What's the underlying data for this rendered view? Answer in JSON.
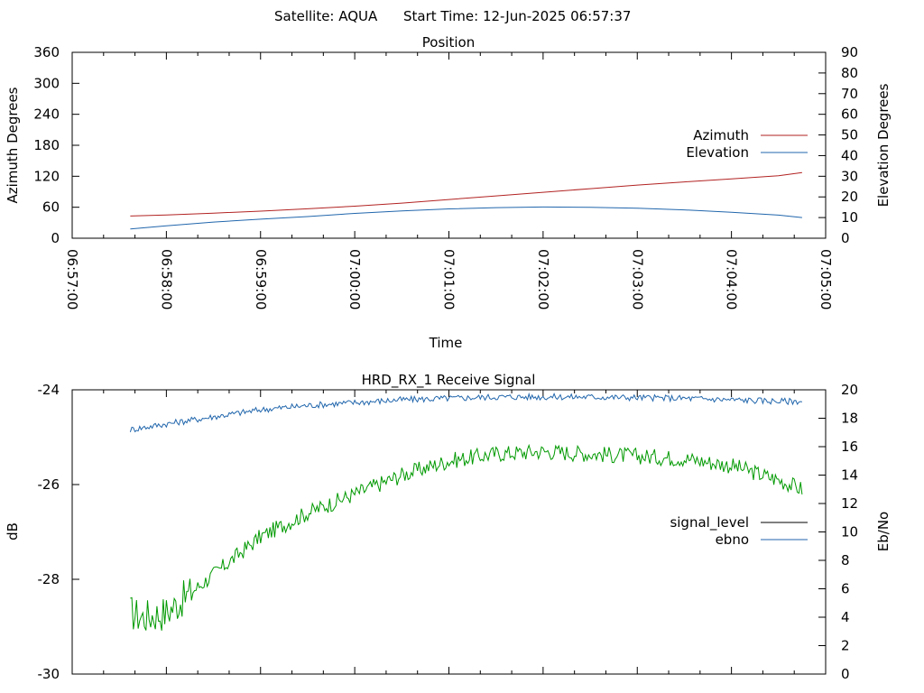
{
  "header": {
    "satellite": "Satellite: AQUA",
    "start_time": "Start Time: 12-Jun-2025 06:57:37"
  },
  "chart_data": [
    {
      "type": "line",
      "title": "Position",
      "xlabel": "Time",
      "ylabel": "Azimuth Degrees",
      "y2label": "Elevation Degrees",
      "xlim": [
        "06:57:00",
        "07:05:00"
      ],
      "ylim": [
        0,
        360
      ],
      "y2lim": [
        0,
        90
      ],
      "x_tick_labels": [
        "06:57:00",
        "06:58:00",
        "06:59:00",
        "07:00:00",
        "07:01:00",
        "07:02:00",
        "07:03:00",
        "07:04:00",
        "07:05:00"
      ],
      "y_tick_labels": [
        "0",
        "60",
        "120",
        "180",
        "240",
        "300",
        "360"
      ],
      "y2_tick_labels": [
        "0",
        "10",
        "20",
        "30",
        "40",
        "50",
        "60",
        "70",
        "80",
        "90"
      ],
      "legend_position": "right",
      "grid": false,
      "series": [
        {
          "name": "Azimuth",
          "axis": "y",
          "color": "#b22222",
          "points": [
            [
              "06:57:37",
              43
            ],
            [
              "06:58:00",
              45
            ],
            [
              "06:58:30",
              48.5
            ],
            [
              "06:59:00",
              52.5
            ],
            [
              "06:59:30",
              57
            ],
            [
              "07:00:00",
              62
            ],
            [
              "07:00:30",
              68
            ],
            [
              "07:01:00",
              75
            ],
            [
              "07:01:30",
              82
            ],
            [
              "07:02:00",
              89
            ],
            [
              "07:02:30",
              96
            ],
            [
              "07:03:00",
              103
            ],
            [
              "07:03:30",
              109
            ],
            [
              "07:04:00",
              115
            ],
            [
              "07:04:30",
              121
            ],
            [
              "07:04:45",
              127
            ]
          ]
        },
        {
          "name": "Elevation",
          "axis": "y2",
          "color": "#2166ac",
          "points": [
            [
              "06:57:37",
              4.5
            ],
            [
              "06:58:00",
              6
            ],
            [
              "06:58:30",
              7.8
            ],
            [
              "06:59:00",
              9.2
            ],
            [
              "06:59:30",
              10.5
            ],
            [
              "07:00:00",
              12
            ],
            [
              "07:00:30",
              13.2
            ],
            [
              "07:01:00",
              14.2
            ],
            [
              "07:01:30",
              14.8
            ],
            [
              "07:02:00",
              15.1
            ],
            [
              "07:02:30",
              15
            ],
            [
              "07:03:00",
              14.5
            ],
            [
              "07:03:30",
              13.7
            ],
            [
              "07:04:00",
              12.6
            ],
            [
              "07:04:30",
              11.2
            ],
            [
              "07:04:45",
              10
            ]
          ]
        }
      ]
    },
    {
      "type": "line",
      "title": "HRD_RX_1 Receive Signal",
      "ylabel": "dB",
      "y2label": "Eb/No",
      "xlim": [
        "06:57:00",
        "07:05:00"
      ],
      "ylim": [
        -30,
        -24
      ],
      "y2lim": [
        0,
        20
      ],
      "y_tick_labels": [
        "-30",
        "-28",
        "-26",
        "-24"
      ],
      "y2_tick_labels": [
        "0",
        "2",
        "4",
        "6",
        "8",
        "10",
        "12",
        "14",
        "16",
        "18",
        "20"
      ],
      "legend_position": "right",
      "grid": false,
      "series": [
        {
          "name": "signal_level",
          "axis": "y",
          "color": "#009900",
          "legend_color": "#000000",
          "points": [
            [
              "06:57:37",
              -28.7
            ],
            [
              "06:57:45",
              -28.8
            ],
            [
              "06:58:00",
              -28.7
            ],
            [
              "06:58:15",
              -28.3
            ],
            [
              "06:58:30",
              -27.9
            ],
            [
              "06:59:00",
              -27.1
            ],
            [
              "06:59:30",
              -26.6
            ],
            [
              "07:00:00",
              -26.2
            ],
            [
              "07:00:30",
              -25.8
            ],
            [
              "07:01:00",
              -25.5
            ],
            [
              "07:01:30",
              -25.35
            ],
            [
              "07:02:00",
              -25.3
            ],
            [
              "07:02:30",
              -25.35
            ],
            [
              "07:03:00",
              -25.4
            ],
            [
              "07:03:30",
              -25.45
            ],
            [
              "07:04:00",
              -25.6
            ],
            [
              "07:04:30",
              -25.9
            ],
            [
              "07:04:45",
              -26.1
            ]
          ]
        },
        {
          "name": "ebno",
          "axis": "y2",
          "color": "#2166ac",
          "points": [
            [
              "06:57:37",
              17.2
            ],
            [
              "06:58:00",
              17.6
            ],
            [
              "06:58:30",
              18.1
            ],
            [
              "06:59:00",
              18.6
            ],
            [
              "06:59:30",
              18.9
            ],
            [
              "07:00:00",
              19.1
            ],
            [
              "07:00:30",
              19.3
            ],
            [
              "07:01:00",
              19.4
            ],
            [
              "07:01:30",
              19.5
            ],
            [
              "07:02:00",
              19.5
            ],
            [
              "07:02:30",
              19.5
            ],
            [
              "07:03:00",
              19.45
            ],
            [
              "07:03:30",
              19.4
            ],
            [
              "07:04:00",
              19.3
            ],
            [
              "07:04:30",
              19.2
            ],
            [
              "07:04:45",
              19.2
            ]
          ]
        }
      ]
    }
  ]
}
